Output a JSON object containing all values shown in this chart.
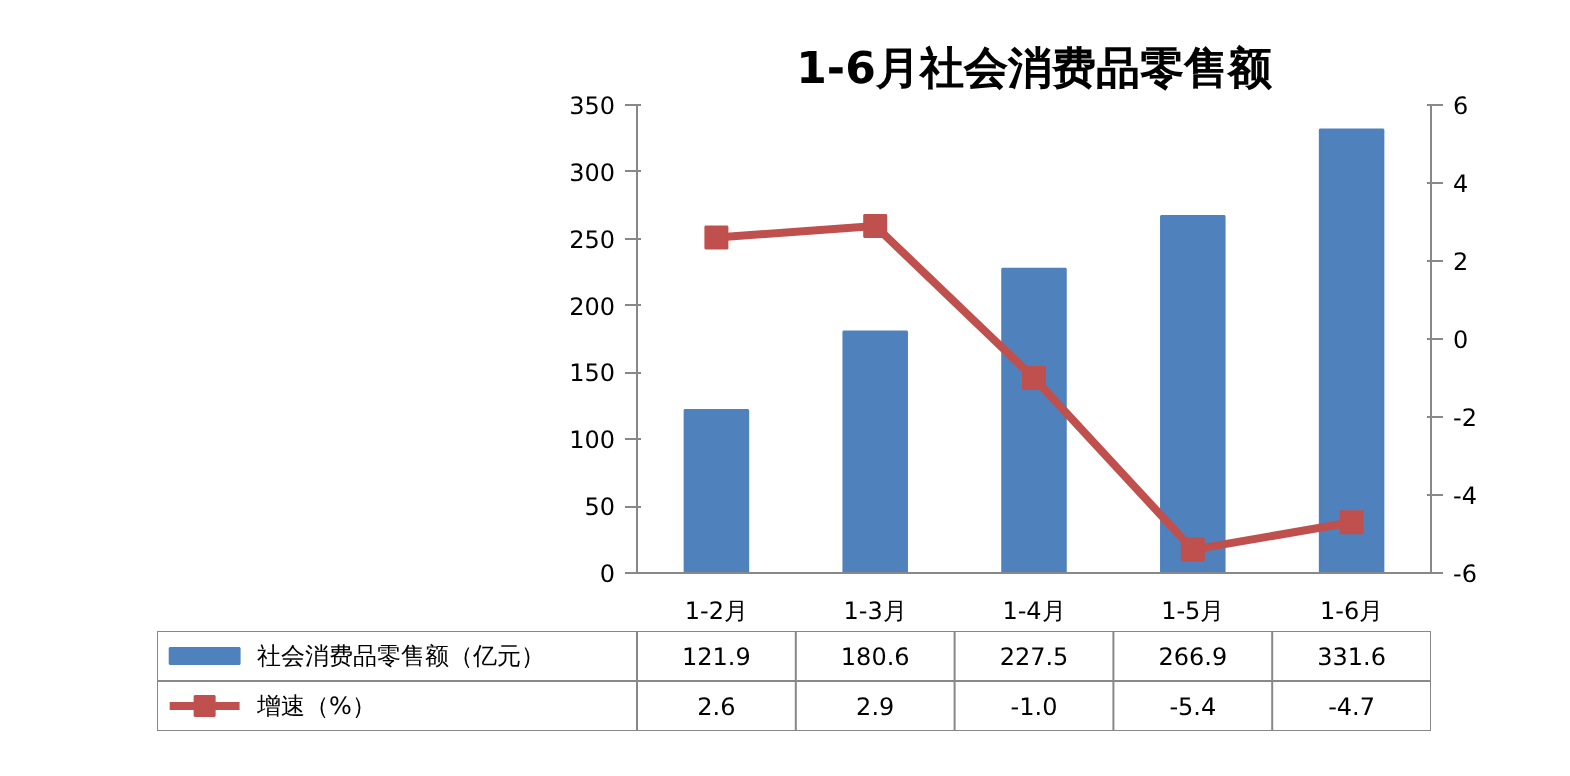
{
  "chart_data": {
    "type": "bar",
    "title": "1-6月社会消费品零售额",
    "categories": [
      "1-2月",
      "1-3月",
      "1-4月",
      "1-5月",
      "1-6月"
    ],
    "series": [
      {
        "name": "社会消费品零售额（亿元）",
        "color": "#4f81bd",
        "values": [
          121.9,
          180.6,
          227.5,
          266.9,
          331.6
        ]
      },
      {
        "name": "增速（%）",
        "type": "line",
        "axis": "y2",
        "color": "#c0504d",
        "marker": "square",
        "values": [
          2.6,
          2.9,
          -1.0,
          -5.4,
          -4.7
        ],
        "value_labels": [
          "2.6",
          "2.9",
          "-1.0",
          "-5.4",
          "-4.7"
        ]
      }
    ],
    "ylim": [
      0,
      350
    ],
    "yticks": [
      0,
      50,
      100,
      150,
      200,
      250,
      300,
      350
    ],
    "y2lim": [
      -6,
      6
    ],
    "y2ticks": [
      -6,
      -4,
      -2,
      0,
      2,
      4,
      6
    ],
    "data_labels": true,
    "legend": "bottom",
    "grid": false
  }
}
